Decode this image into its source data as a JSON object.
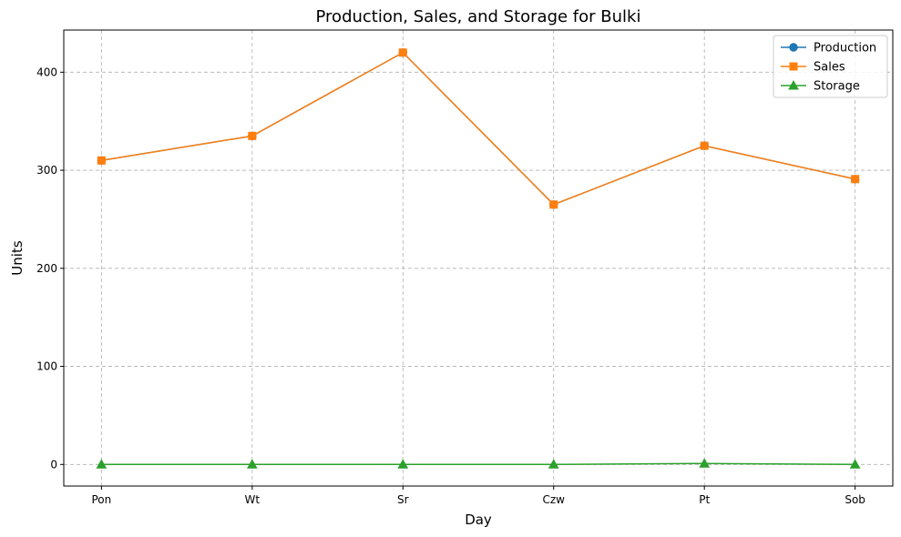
{
  "chart_data": {
    "type": "line",
    "title": "Production, Sales, and Storage for Bulki",
    "xlabel": "Day",
    "ylabel": "Units",
    "categories": [
      "Pon",
      "Wt",
      "Sr",
      "Czw",
      "Pt",
      "Sob"
    ],
    "ylim": [
      -22,
      443
    ],
    "yticks": [
      0,
      100,
      200,
      300,
      400
    ],
    "grid": true,
    "legend_position": "upper-right",
    "series": [
      {
        "name": "Production",
        "marker": "circle",
        "color": "#1f77b4",
        "values": [
          310,
          335,
          420,
          265,
          325,
          291
        ]
      },
      {
        "name": "Sales",
        "marker": "square",
        "color": "#ff7f0e",
        "values": [
          310,
          335,
          420,
          265,
          325,
          291
        ]
      },
      {
        "name": "Storage",
        "marker": "triangle",
        "color": "#2ca02c",
        "values": [
          0,
          0,
          0,
          0,
          1,
          0
        ]
      }
    ]
  }
}
